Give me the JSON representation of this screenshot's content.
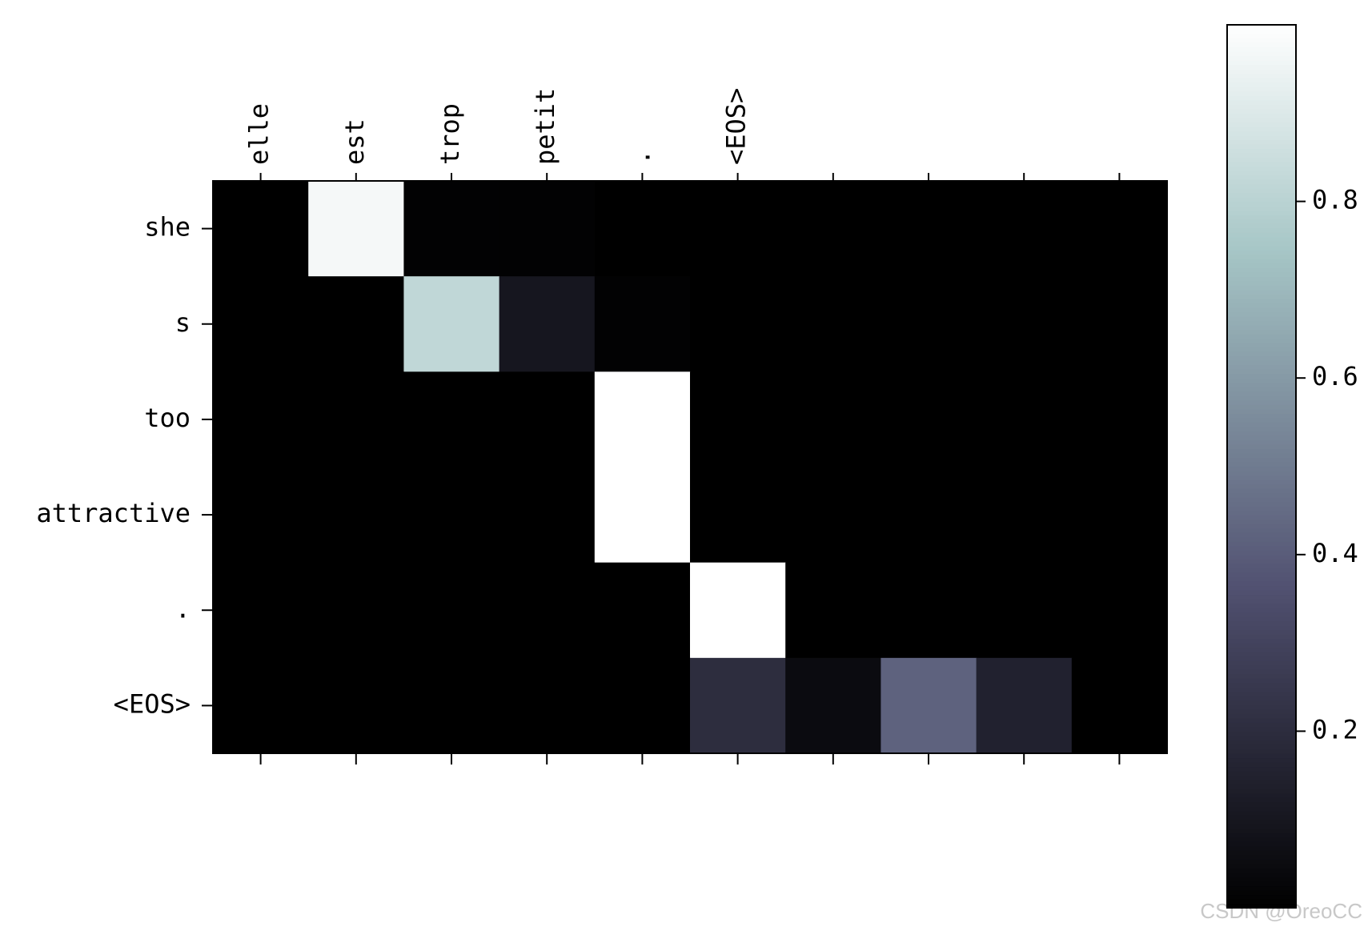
{
  "chart_data": {
    "type": "heatmap",
    "categories": [
      "elle",
      "est",
      "trop",
      "petit",
      ".",
      "<EOS>",
      null,
      null,
      null,
      null
    ],
    "rows": [
      "she",
      "s",
      "too",
      "attractive",
      ".",
      "<EOS>"
    ],
    "values": [
      [
        0,
        0.97,
        0.01,
        0.01,
        0,
        0,
        0,
        0,
        0,
        0
      ],
      [
        0,
        0,
        0.82,
        0.1,
        0.01,
        0,
        0,
        0,
        0,
        0
      ],
      [
        0,
        0,
        0,
        0,
        1.0,
        0,
        0,
        0,
        0,
        0
      ],
      [
        0,
        0,
        0,
        0,
        1.0,
        0,
        0,
        0,
        0,
        0
      ],
      [
        0,
        0,
        0,
        0,
        0,
        1.0,
        0,
        0,
        0,
        0
      ],
      [
        0,
        0,
        0,
        0,
        0,
        0.2,
        0.05,
        0.42,
        0.15,
        0
      ]
    ],
    "colormap": "bone",
    "clim": [
      0,
      1.0
    ],
    "cticks": [
      0.2,
      0.4,
      0.6,
      0.8
    ],
    "watermark": "CSDN @OreoCC"
  }
}
